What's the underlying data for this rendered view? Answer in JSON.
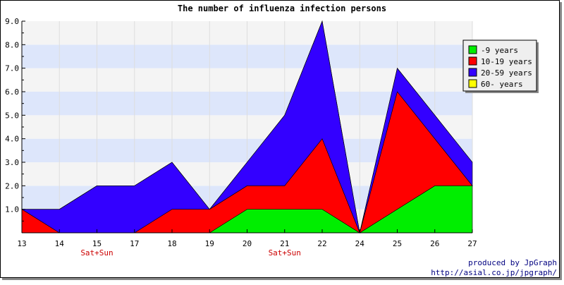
{
  "chart_data": {
    "type": "area",
    "stacked": true,
    "title": "The number of influenza infection persons",
    "xlabel": "",
    "ylabel": "",
    "x": [
      "13",
      "14",
      "15",
      "17",
      "18",
      "19",
      "20",
      "21",
      "22",
      "24",
      "25",
      "26",
      "27"
    ],
    "x_sublabels": [
      "",
      "",
      "Sat+Sun",
      "",
      "",
      "",
      "",
      "Sat+Sun",
      "",
      "",
      "",
      "",
      ""
    ],
    "series": [
      {
        "name": "-9 years",
        "color": "#00ee00",
        "values": [
          0,
          0,
          0,
          0,
          0,
          0,
          1,
          1,
          1,
          0,
          1,
          2,
          2
        ]
      },
      {
        "name": "10-19 years",
        "color": "#ff0000",
        "values": [
          1,
          0,
          0,
          0,
          1,
          1,
          1,
          1,
          3,
          0,
          5,
          2,
          0
        ]
      },
      {
        "name": "20-59 years",
        "color": "#3300ff",
        "values": [
          0,
          1,
          2,
          2,
          2,
          0,
          1,
          3,
          5,
          0,
          1,
          1,
          1
        ]
      },
      {
        "name": "60- years",
        "color": "#ffff00",
        "values": [
          0,
          0,
          0,
          0,
          0,
          0,
          0,
          0,
          0,
          0,
          0,
          0,
          0
        ]
      }
    ],
    "ylim": [
      0,
      9
    ],
    "yticks": [
      "1.0",
      "2.0",
      "3.0",
      "4.0",
      "5.0",
      "6.0",
      "7.0",
      "8.0",
      "9.0"
    ],
    "grid": true,
    "legend": "top-right",
    "band_colors": [
      "#f4f4f4",
      "#dde6fb"
    ],
    "credit_line1": "produced by JpGraph",
    "credit_line2": "http://asial.co.jp/jpgraph/"
  }
}
